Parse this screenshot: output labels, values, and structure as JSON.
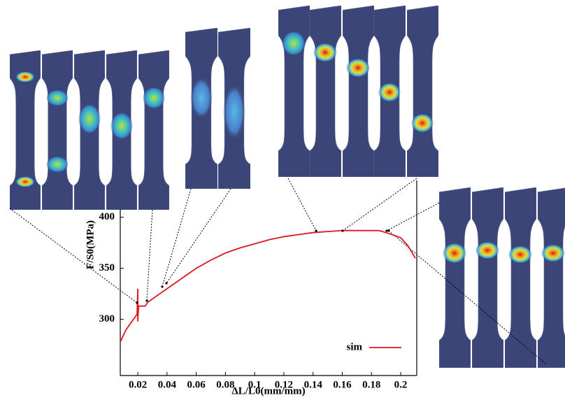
{
  "chart_data": {
    "type": "line",
    "x_label": "ΔL/L0(mm/mm)",
    "y_label": "F/S0(MPa)",
    "x": [
      0.008,
      0.012,
      0.016,
      0.0195,
      0.02,
      0.02,
      0.0205,
      0.025,
      0.027,
      0.03,
      0.035,
      0.04,
      0.05,
      0.06,
      0.07,
      0.08,
      0.09,
      0.1,
      0.11,
      0.12,
      0.13,
      0.14,
      0.15,
      0.16,
      0.17,
      0.18,
      0.185,
      0.19,
      0.2,
      0.205,
      0.21
    ],
    "series": [
      {
        "name": "sim",
        "color": "#e0141e",
        "values": [
          278,
          290,
          298,
          305,
          330,
          298,
          313,
          313,
          317,
          320,
          325,
          330,
          340,
          350,
          358,
          365,
          370,
          374,
          378,
          381,
          383,
          385,
          386,
          387,
          387,
          387,
          387,
          385,
          380,
          372,
          360
        ]
      }
    ],
    "xlim": [
      0.008,
      0.211
    ],
    "ylim": [
      245,
      408
    ],
    "xticks": [
      0.02,
      0.04,
      0.06,
      0.08,
      0.1,
      0.12,
      0.14,
      0.16,
      0.18,
      0.2
    ],
    "yticks": [
      300,
      350,
      400
    ]
  }
}
